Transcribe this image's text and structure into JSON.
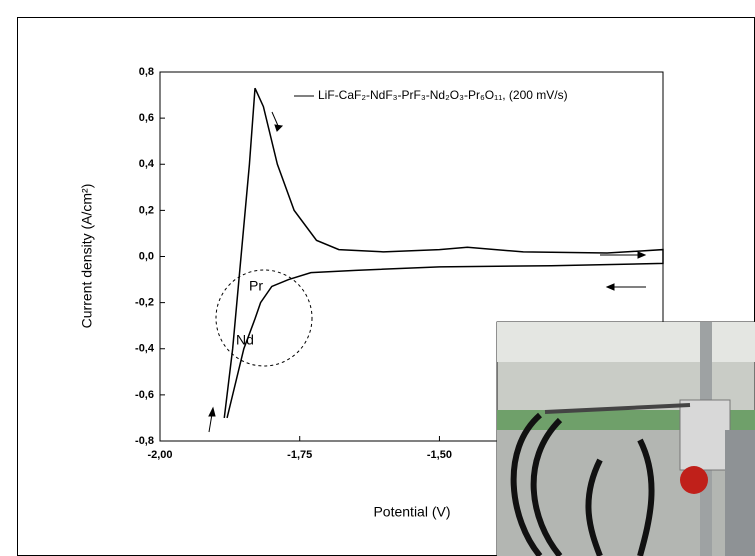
{
  "chart_data": {
    "type": "line",
    "xlabel": "Potential (V)",
    "ylabel": "Current density (A/cm²)",
    "xlim": [
      -2.0,
      -1.1
    ],
    "xticks": [
      {
        "value": -2.0,
        "label": "-2,00"
      },
      {
        "value": -1.75,
        "label": "-1,75"
      },
      {
        "value": -1.5,
        "label": "-1,50"
      }
    ],
    "ylim": [
      -0.8,
      0.8
    ],
    "yticks": [
      {
        "value": -0.8,
        "label": "-0,8"
      },
      {
        "value": -0.6,
        "label": "-0,6"
      },
      {
        "value": -0.4,
        "label": "-0,4"
      },
      {
        "value": -0.2,
        "label": "-0,2"
      },
      {
        "value": 0,
        "label": "0,0"
      },
      {
        "value": 0.2,
        "label": "0,2"
      },
      {
        "value": 0.4,
        "label": "0,4"
      },
      {
        "value": 0.6,
        "label": "0,6"
      },
      {
        "value": 0.8,
        "label": "0,8"
      }
    ],
    "legend": "upper right",
    "series": [
      {
        "name": "LiF-CaF₂-NdF₃-PrF₃-Nd₂O₃-Pr₆O₁₁, (200 mV/s)",
        "color": "#000000",
        "x": [
          -1.885,
          -1.87,
          -1.855,
          -1.84,
          -1.83,
          -1.815,
          -1.79,
          -1.76,
          -1.72,
          -1.68,
          -1.6,
          -1.5,
          -1.45,
          -1.35,
          -1.2,
          -1.1,
          -1.1,
          -1.3,
          -1.5,
          -1.65,
          -1.73,
          -1.77,
          -1.8,
          -1.82,
          -1.83,
          -1.85,
          -1.87,
          -1.88
        ],
        "values": [
          -0.7,
          -0.4,
          0.0,
          0.4,
          0.73,
          0.65,
          0.4,
          0.2,
          0.07,
          0.03,
          0.02,
          0.03,
          0.04,
          0.02,
          0.015,
          0.03,
          -0.03,
          -0.04,
          -0.045,
          -0.06,
          -0.07,
          -0.1,
          -0.13,
          -0.2,
          -0.27,
          -0.4,
          -0.6,
          -0.7
        ]
      }
    ],
    "annotations": [
      "Pr",
      "Nd"
    ]
  }
}
